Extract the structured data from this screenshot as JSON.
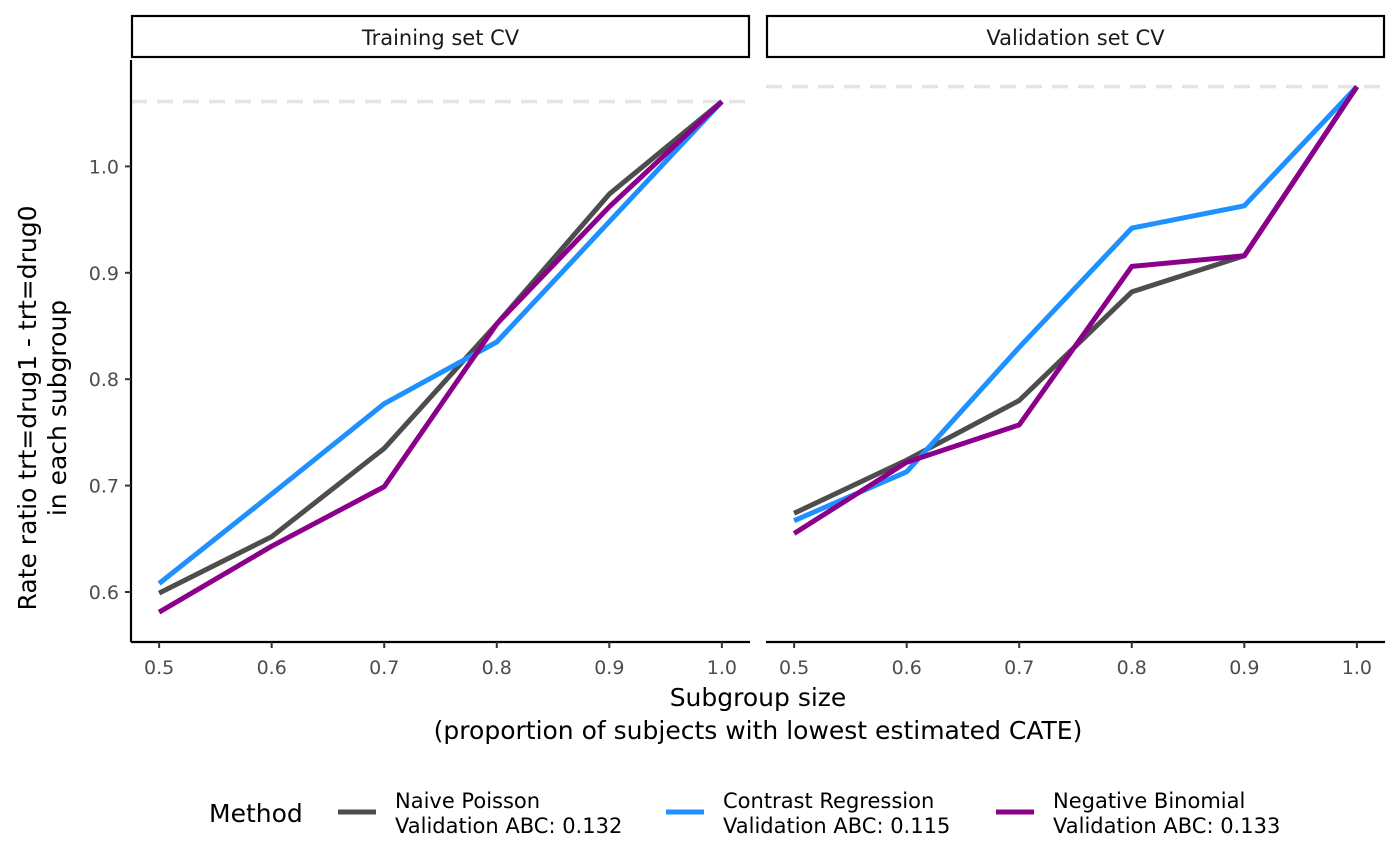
{
  "chart_data": {
    "type": "line",
    "xlabel": "Subgroup size",
    "xlabel_line2": "(proportion of subjects with lowest estimated CATE)",
    "ylabel": "Rate ratio trt=drug1 - trt=drug0",
    "ylabel_line2": "in each subgroup",
    "x_ticks": [
      "0.5",
      "0.6",
      "0.7",
      "0.8",
      "0.9",
      "1.0"
    ],
    "y_ticks": [
      "0.6",
      "0.7",
      "0.8",
      "0.9",
      "1.0"
    ],
    "xlim": [
      0.475,
      1.025
    ],
    "ylim": [
      0.553,
      1.1
    ],
    "grid": false,
    "legend_position": "bottom",
    "legend_title": "Method",
    "colors": {
      "Naive Poisson": "#4d4d4d",
      "Contrast Regression": "#1e90ff",
      "Negative Binomial": "#8b008b",
      "reference": "#e5e5e5"
    },
    "legend": [
      {
        "line1": "Naive Poisson",
        "line2": "Validation ABC: 0.132",
        "color": "#4d4d4d"
      },
      {
        "line1": "Contrast Regression",
        "line2": "Validation ABC: 0.115",
        "color": "#1e90ff"
      },
      {
        "line1": "Negative Binomial",
        "line2": "Validation ABC: 0.133",
        "color": "#8b008b"
      }
    ],
    "panels": [
      {
        "title": "Training set CV",
        "reference_y": 1.061,
        "x": [
          0.5,
          0.6,
          0.7,
          0.8,
          0.9,
          1.0
        ],
        "series": [
          {
            "name": "Naive Poisson",
            "color": "#4d4d4d",
            "values": [
              0.599,
              0.652,
              0.735,
              0.852,
              0.974,
              1.061
            ]
          },
          {
            "name": "Contrast Regression",
            "color": "#1e90ff",
            "values": [
              0.608,
              0.692,
              0.777,
              0.835,
              0.948,
              1.061
            ]
          },
          {
            "name": "Negative Binomial",
            "color": "#8b008b",
            "values": [
              0.581,
              0.643,
              0.699,
              0.852,
              0.962,
              1.061
            ]
          }
        ]
      },
      {
        "title": "Validation set CV",
        "reference_y": 1.075,
        "x": [
          0.5,
          0.6,
          0.7,
          0.8,
          0.9,
          1.0
        ],
        "series": [
          {
            "name": "Naive Poisson",
            "color": "#4d4d4d",
            "values": [
              0.674,
              0.724,
              0.78,
              0.882,
              0.916,
              1.075
            ]
          },
          {
            "name": "Contrast Regression",
            "color": "#1e90ff",
            "values": [
              0.667,
              0.713,
              0.83,
              0.942,
              0.963,
              1.075
            ]
          },
          {
            "name": "Negative Binomial",
            "color": "#8b008b",
            "values": [
              0.655,
              0.722,
              0.757,
              0.906,
              0.916,
              1.075
            ]
          }
        ]
      }
    ]
  }
}
